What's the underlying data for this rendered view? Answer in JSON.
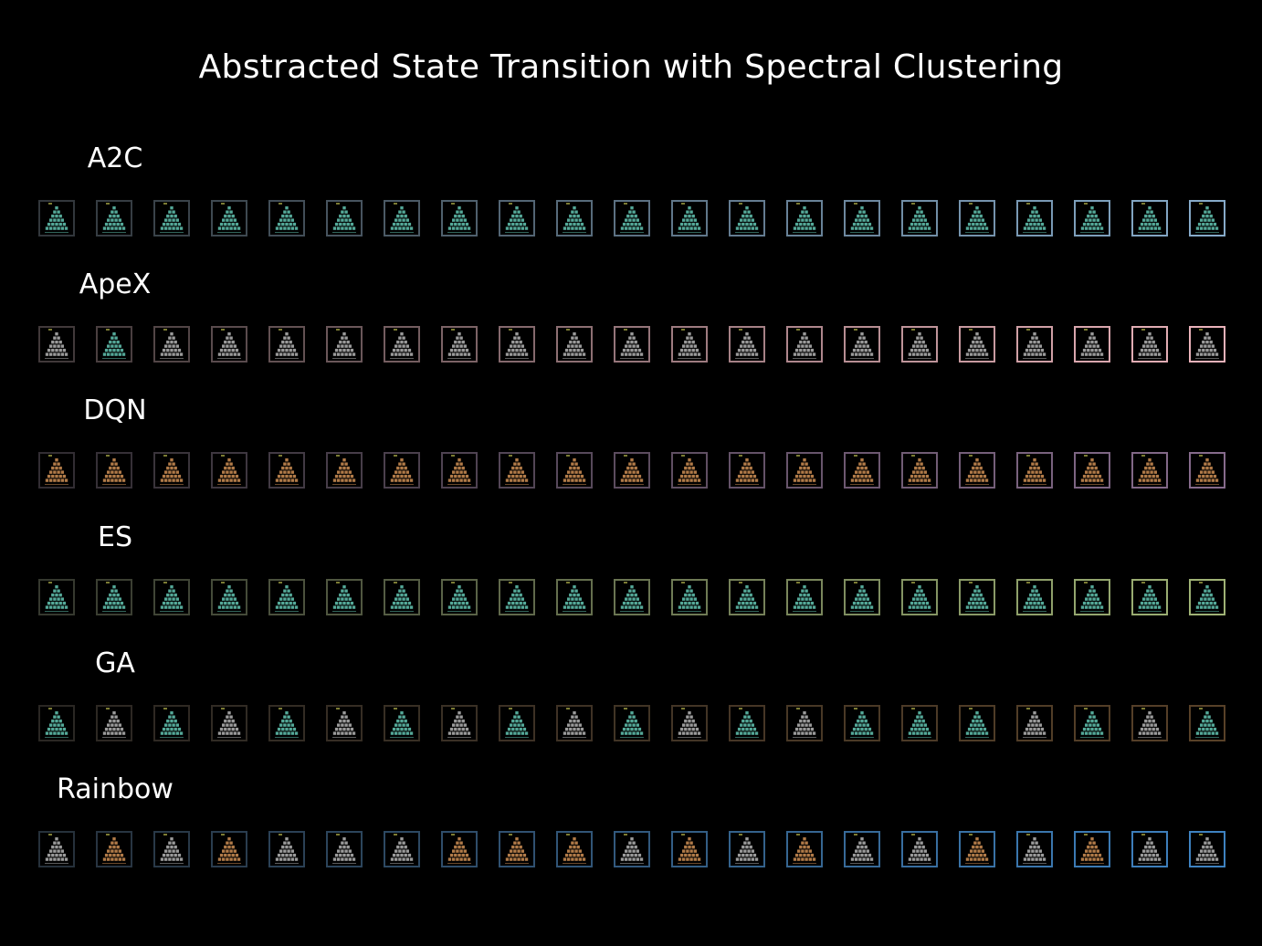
{
  "title": "Abstracted State Transition with Spectral Clustering",
  "rows": [
    {
      "label": "A2C",
      "accent": "#8ab0d0",
      "pyramids": [
        "t",
        "t",
        "t",
        "t",
        "t",
        "t",
        "t",
        "t",
        "t",
        "t",
        "t",
        "t",
        "t",
        "t",
        "t",
        "t",
        "t",
        "t",
        "t",
        "t",
        "t",
        "t"
      ]
    },
    {
      "label": "ApeX",
      "accent": "#f2b8c0",
      "pyramids": [
        "g",
        "t",
        "g",
        "g",
        "g",
        "g",
        "g",
        "g",
        "g",
        "g",
        "g",
        "g",
        "g",
        "g",
        "g",
        "g",
        "g",
        "g",
        "g",
        "g",
        "g",
        "g"
      ]
    },
    {
      "label": "DQN",
      "accent": "#8a6e90",
      "pyramids": [
        "o",
        "o",
        "o",
        "o",
        "o",
        "o",
        "o",
        "o",
        "o",
        "o",
        "o",
        "o",
        "o",
        "o",
        "o",
        "o",
        "o",
        "o",
        "o",
        "o",
        "o",
        "o"
      ]
    },
    {
      "label": "ES",
      "accent": "#a4b878",
      "pyramids": [
        "t",
        "t",
        "t",
        "t",
        "t",
        "t",
        "t",
        "t",
        "t",
        "t",
        "t",
        "t",
        "t",
        "t",
        "t",
        "t",
        "t",
        "t",
        "t",
        "t",
        "t",
        "t"
      ]
    },
    {
      "label": "GA",
      "accent": "#5a4228",
      "pyramids": [
        "t",
        "g",
        "t",
        "g",
        "t",
        "g",
        "t",
        "g",
        "t",
        "g",
        "t",
        "g",
        "t",
        "g",
        "t",
        "t",
        "t",
        "g",
        "t",
        "g",
        "t",
        "g"
      ]
    },
    {
      "label": "Rainbow",
      "accent": "#3f86c8",
      "pyramids": [
        "g",
        "o",
        "g",
        "o",
        "g",
        "g",
        "g",
        "o",
        "o",
        "o",
        "g",
        "o",
        "g",
        "o",
        "g",
        "g",
        "o",
        "g",
        "o",
        "g",
        "g",
        "o"
      ]
    }
  ],
  "pyramid_colors": {
    "t": "#54a898",
    "g": "#9a9a9a",
    "o": "#b07a48"
  },
  "frame_base_color": "#222222"
}
